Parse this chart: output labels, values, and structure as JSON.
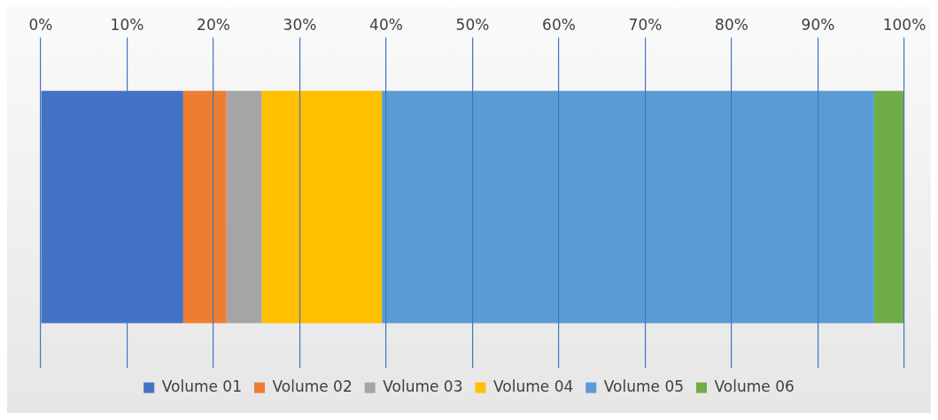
{
  "chart_data": {
    "type": "bar",
    "orientation": "horizontal",
    "stacked": true,
    "categories": [
      null
    ],
    "series": [
      {
        "name": "Volume 01",
        "color": "#4472c4",
        "values": [
          16.5
        ]
      },
      {
        "name": "Volume 02",
        "color": "#ed7d31",
        "values": [
          5
        ]
      },
      {
        "name": "Volume 03",
        "color": "#a5a5a5",
        "values": [
          4.1
        ]
      },
      {
        "name": "Volume 04",
        "color": "#ffc000",
        "values": [
          13.9
        ]
      },
      {
        "name": "Volume 05",
        "color": "#5b9bd5",
        "values": [
          57
        ]
      },
      {
        "name": "Volume 06",
        "color": "#70ad47",
        "values": [
          3.5
        ]
      }
    ],
    "xlim": [
      0,
      100
    ],
    "xticks": [
      {
        "value": 0,
        "label": "0%"
      },
      {
        "value": 10,
        "label": "10%"
      },
      {
        "value": 20,
        "label": "20%"
      },
      {
        "value": 30,
        "label": "30%"
      },
      {
        "value": 40,
        "label": "40%"
      },
      {
        "value": 50,
        "label": "50%"
      },
      {
        "value": 60,
        "label": "60%"
      },
      {
        "value": 70,
        "label": "70%"
      },
      {
        "value": 80,
        "label": "80%"
      },
      {
        "value": 90,
        "label": "90%"
      },
      {
        "value": 100,
        "label": "100%"
      }
    ],
    "grid": "x",
    "legend": "bottom"
  }
}
